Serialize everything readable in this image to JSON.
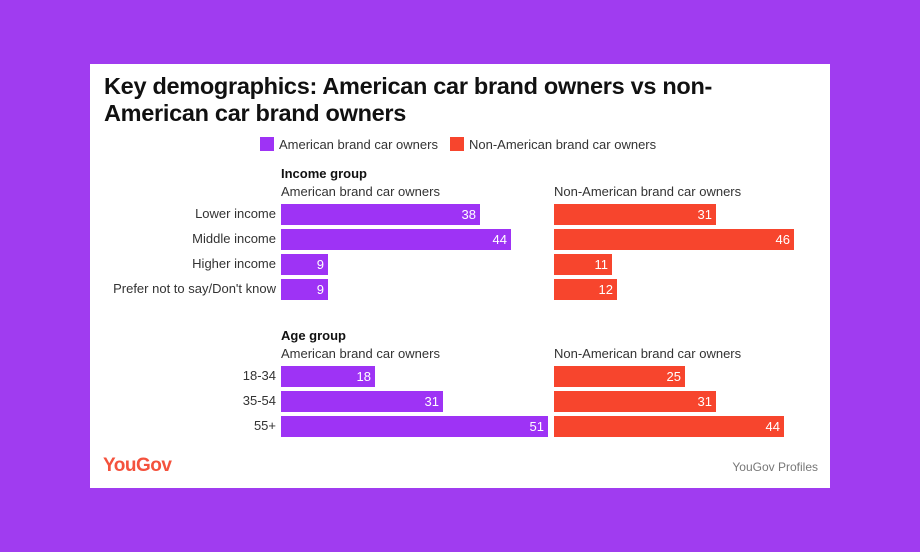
{
  "colors": {
    "american": "#9e33f5",
    "non_american": "#f7452d",
    "background": "#a03cf0"
  },
  "chart_data": {
    "type": "bar",
    "orientation": "horizontal",
    "title": "Key demographics: American car brand owners vs non-American car brand owners",
    "legend": [
      "American brand car owners",
      "Non-American brand car owners"
    ],
    "legend_placement": "top",
    "groups": [
      {
        "title": "Income group",
        "panels": [
          {
            "name": "American brand car owners",
            "color": "#9e33f5"
          },
          {
            "name": "Non-American brand car owners",
            "color": "#f7452d"
          }
        ],
        "categories": [
          "Lower income",
          "Middle income",
          "Higher income",
          "Prefer not to say/Don't know"
        ],
        "series": [
          {
            "name": "American brand car owners",
            "values": [
              38,
              44,
              9,
              9
            ]
          },
          {
            "name": "Non-American brand car owners",
            "values": [
              31,
              46,
              11,
              12
            ]
          }
        ]
      },
      {
        "title": "Age group",
        "panels": [
          {
            "name": "American brand car owners",
            "color": "#9e33f5"
          },
          {
            "name": "Non-American brand car owners",
            "color": "#f7452d"
          }
        ],
        "categories": [
          "18-34",
          "35-54",
          "55+"
        ],
        "series": [
          {
            "name": "American brand car owners",
            "values": [
              18,
              31,
              51
            ]
          },
          {
            "name": "Non-American brand car owners",
            "values": [
              25,
              31,
              44
            ]
          }
        ]
      }
    ]
  },
  "footer": {
    "logo": "YouGov",
    "source": "YouGov Profiles"
  }
}
